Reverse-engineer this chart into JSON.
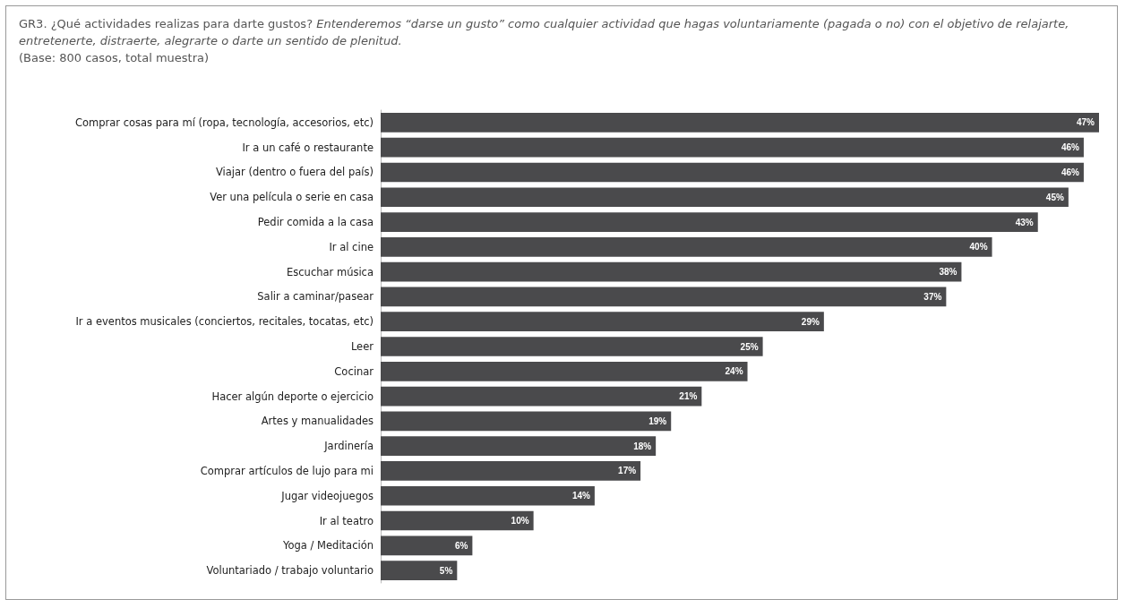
{
  "chart_data": {
    "type": "bar",
    "orientation": "horizontal",
    "title": "GR3. ¿Qué actividades realizas para darte gustos?",
    "subtitle": "Entenderemos “darse un gusto” como cualquier actividad que hagas voluntariamente (pagada o no) con el objetivo de relajarte, entretenerte,  distraerte, alegrarte o darte un sentido de plenitud.",
    "annotations": [
      "(Base: 800 casos, total muestra)"
    ],
    "categories": [
      "Comprar cosas para mí (ropa, tecnología, accesorios, etc)",
      "Ir a un café o restaurante",
      "Viajar (dentro o fuera del país)",
      "Ver una película o serie en casa",
      "Pedir comida a la casa",
      "Ir al cine",
      "Escuchar música",
      "Salir a caminar/pasear",
      "Ir a eventos musicales (conciertos, recitales, tocatas, etc)",
      "Leer",
      "Cocinar",
      "Hacer algún deporte o ejercicio",
      "Artes y manualidades",
      "Jardinería",
      "Comprar artículos de lujo para mi",
      "Jugar videojuegos",
      "Ir al teatro",
      "Yoga / Meditación",
      "Voluntariado / trabajo voluntario"
    ],
    "values": [
      47,
      46,
      46,
      45,
      43,
      40,
      38,
      37,
      29,
      25,
      24,
      21,
      19,
      18,
      17,
      14,
      10,
      6,
      5
    ],
    "value_labels": [
      "47%",
      "46%",
      "46%",
      "45%",
      "43%",
      "40%",
      "38%",
      "37%",
      "29%",
      "25%",
      "24%",
      "21%",
      "19%",
      "18%",
      "17%",
      "14%",
      "10%",
      "6%",
      "5%"
    ],
    "color": "#4a4a4c"
  }
}
